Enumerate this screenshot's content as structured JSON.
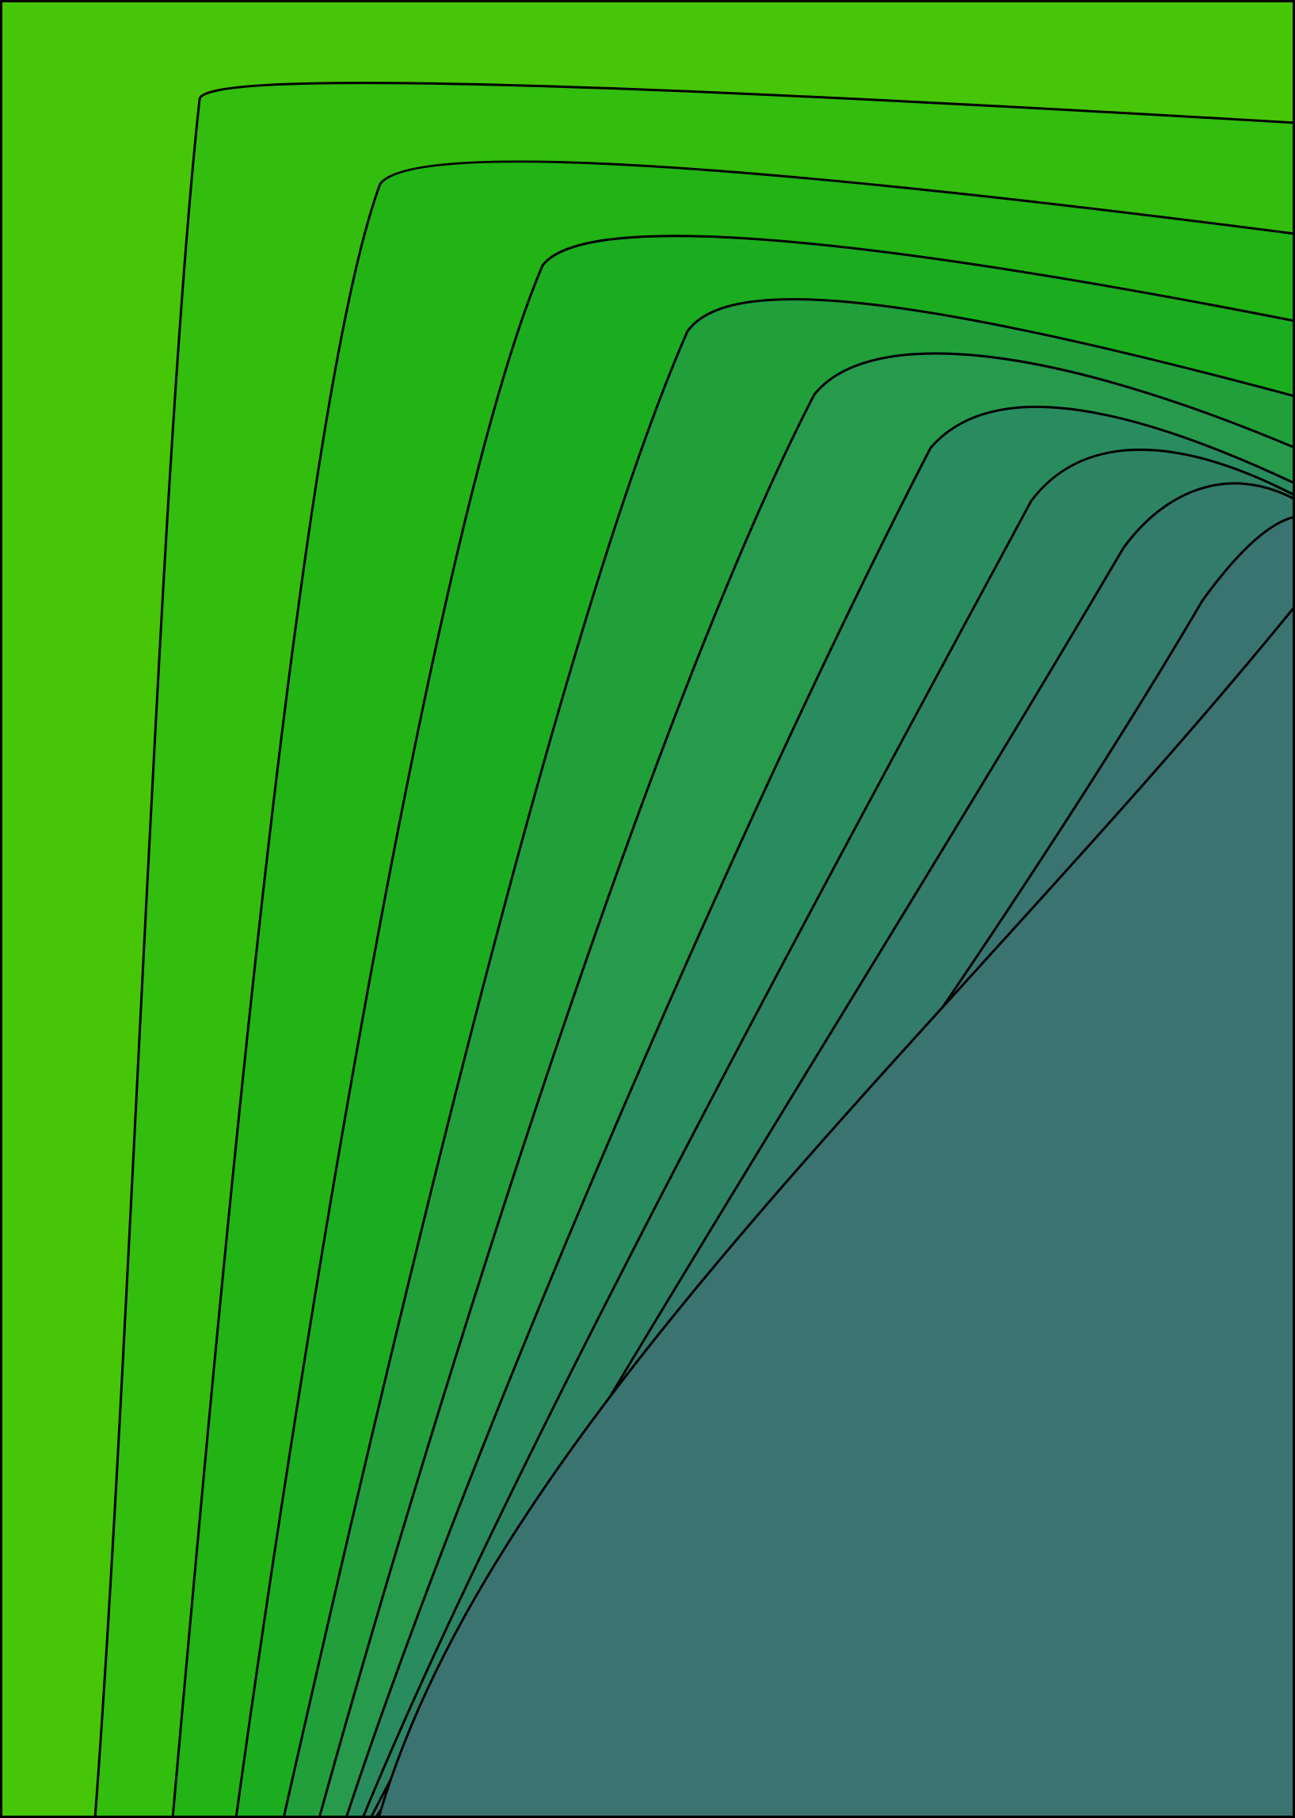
{
  "artwork": {
    "background_color": "#46c607",
    "frame_color": "#000000",
    "band_colors": [
      "#33bd0e",
      "#21b414",
      "#1bad1f",
      "#219f3b",
      "#279a4c",
      "#298c5e",
      "#2d8465",
      "#337b6b",
      "#3a7470",
      "#3b7371"
    ]
  }
}
